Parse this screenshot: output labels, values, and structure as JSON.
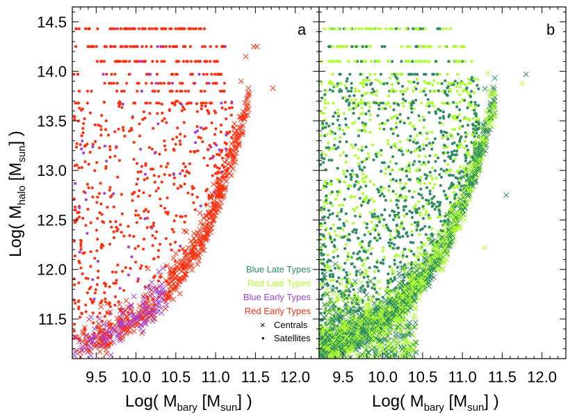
{
  "chart_data": [
    {
      "type": "scatter",
      "panel_label": "a",
      "xlabel": "Log( M_bary [M_sun] )",
      "ylabel": "Log( M_halo [M_sun] )",
      "xlim": [
        9.2,
        12.3
      ],
      "ylim": [
        11.1,
        14.65
      ],
      "x_ticks": [
        "9.5",
        "10.0",
        "10.5",
        "11.0",
        "11.5",
        "12.0"
      ],
      "y_ticks": [
        "11.5",
        "12.0",
        "12.5",
        "13.0",
        "13.5",
        "14.0",
        "14.5"
      ],
      "series": [
        {
          "name": "Red Early Types",
          "color": "#ff3010"
        },
        {
          "name": "Blue Early Types",
          "color": "#a040e0"
        }
      ],
      "halo_bands": [
        14.43,
        14.25,
        14.1,
        13.97,
        13.88,
        13.8,
        13.68
      ],
      "central_relation": [
        [
          9.3,
          11.12
        ],
        [
          9.6,
          11.2
        ],
        [
          9.9,
          11.35
        ],
        [
          10.2,
          11.52
        ],
        [
          10.5,
          11.8
        ],
        [
          10.8,
          12.15
        ],
        [
          11.0,
          12.55
        ],
        [
          11.2,
          13.0
        ],
        [
          11.4,
          13.6
        ],
        [
          11.6,
          14.1
        ]
      ],
      "notable_points": [
        [
          11.72,
          13.83
        ],
        [
          11.48,
          14.25
        ],
        [
          11.38,
          14.15
        ],
        [
          11.32,
          13.9
        ],
        [
          11.52,
          14.25
        ]
      ]
    },
    {
      "type": "scatter",
      "panel_label": "b",
      "xlabel": "Log( M_bary [M_sun] )",
      "xlim": [
        9.2,
        12.3
      ],
      "ylim": [
        11.1,
        14.65
      ],
      "x_ticks": [
        "9.5",
        "10.0",
        "10.5",
        "11.0",
        "11.5",
        "12.0"
      ],
      "series": [
        {
          "name": "Blue Late Types",
          "color": "#2e8b63"
        },
        {
          "name": "Red Late Types",
          "color": "#adff2f"
        }
      ],
      "halo_bands": [
        14.43,
        14.25,
        14.1,
        13.97,
        13.88,
        13.8,
        13.68
      ],
      "central_relation": [
        [
          9.3,
          11.12
        ],
        [
          9.6,
          11.2
        ],
        [
          9.9,
          11.35
        ],
        [
          10.2,
          11.52
        ],
        [
          10.5,
          11.8
        ],
        [
          10.8,
          12.15
        ],
        [
          11.0,
          12.55
        ],
        [
          11.2,
          13.0
        ],
        [
          11.4,
          13.6
        ],
        [
          11.6,
          14.1
        ]
      ],
      "notable_points": [
        [
          11.8,
          13.97
        ],
        [
          11.75,
          13.88
        ],
        [
          11.32,
          13.98
        ],
        [
          11.28,
          12.22
        ],
        [
          11.55,
          12.75
        ],
        [
          11.42,
          13.55
        ]
      ]
    }
  ],
  "legend": {
    "items": [
      {
        "label": "Blue Late Types",
        "color": "#2e8b63"
      },
      {
        "label": "Red Late Types",
        "color": "#adff2f"
      },
      {
        "label": "Blue Early Types",
        "color": "#a040e0"
      },
      {
        "label": "Red Early Types",
        "color": "#ff3010"
      }
    ],
    "markers": [
      {
        "label": "Centrals",
        "symbol": "×"
      },
      {
        "label": "Satellites",
        "symbol": "•"
      }
    ]
  },
  "axis_titles": {
    "x_main": "Log( M",
    "x_sub": "bary",
    "x_mid": " [M",
    "x_sub2": "sun",
    "x_end": "] )",
    "y_main": "Log( M",
    "y_sub": "halo",
    "y_mid": " [M",
    "y_sub2": "sun",
    "y_end": "] )"
  }
}
